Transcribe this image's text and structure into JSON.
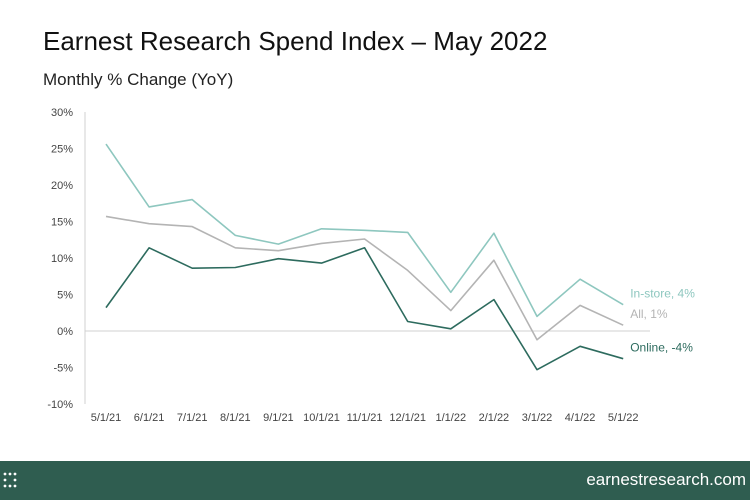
{
  "header": {
    "title": "Earnest Research Spend Index – May 2022",
    "subtitle": "Monthly % Change (YoY)"
  },
  "footer": {
    "url": "earnestresearch.com",
    "background": "#2f5d50"
  },
  "chart_data": {
    "type": "line",
    "title": "Earnest Research Spend Index – May 2022",
    "subtitle": "Monthly % Change (YoY)",
    "categories": [
      "5/1/21",
      "6/1/21",
      "7/1/21",
      "8/1/21",
      "9/1/21",
      "10/1/21",
      "11/1/21",
      "12/1/21",
      "1/1/22",
      "2/1/22",
      "3/1/22",
      "4/1/22",
      "5/1/22"
    ],
    "y_ticks": [
      "30%",
      "25%",
      "20%",
      "15%",
      "10%",
      "5%",
      "0%",
      "-5%",
      "-10%"
    ],
    "ylim": [
      -10,
      30
    ],
    "grid": false,
    "series": [
      {
        "name": "In-store",
        "label": "In-store, 4%",
        "color": "#8ec7bf",
        "values": [
          25.6,
          17.0,
          18.0,
          13.1,
          11.9,
          14.0,
          13.8,
          13.5,
          5.3,
          13.4,
          2.0,
          7.1,
          3.6
        ]
      },
      {
        "name": "All",
        "label": "All, 1%",
        "color": "#b4b4b4",
        "values": [
          15.7,
          14.7,
          14.3,
          11.4,
          11.0,
          12.0,
          12.6,
          8.3,
          2.8,
          9.7,
          -1.2,
          3.5,
          0.8
        ]
      },
      {
        "name": "Online",
        "label": "Online, -4%",
        "color": "#2d6b5e",
        "values": [
          3.2,
          11.4,
          8.6,
          8.7,
          9.9,
          9.3,
          11.4,
          1.3,
          0.3,
          4.3,
          -5.3,
          -2.1,
          -3.8
        ]
      }
    ]
  }
}
